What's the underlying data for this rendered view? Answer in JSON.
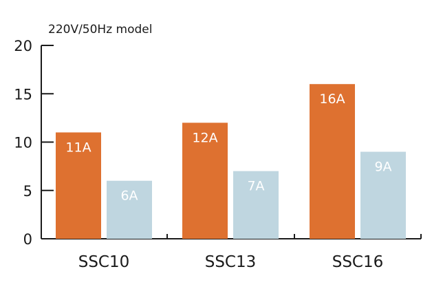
{
  "chart_data": {
    "type": "bar",
    "subtitle": "220V/50Hz model",
    "categories": [
      "SSC10",
      "SSC13",
      "SSC16"
    ],
    "series": [
      {
        "color": "#de7130",
        "values": [
          11,
          12,
          16
        ],
        "labels": [
          "11A",
          "12A",
          "16A"
        ]
      },
      {
        "color": "#bfd6e0",
        "values": [
          6,
          7,
          9
        ],
        "labels": [
          "6A",
          "7A",
          "9A"
        ]
      }
    ],
    "ylim": [
      0,
      20
    ],
    "yticks": [
      0,
      5,
      10,
      15,
      20
    ],
    "ytick_labels": [
      "0",
      "5",
      "10",
      "15",
      "20"
    ],
    "grid": false,
    "legend": "none"
  }
}
